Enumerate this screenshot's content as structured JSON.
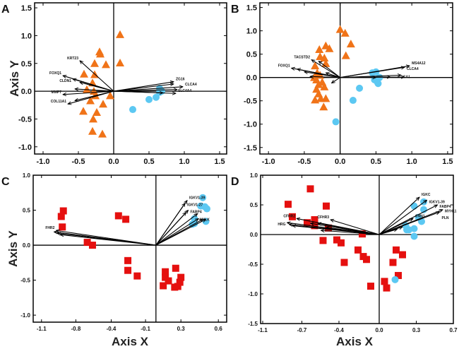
{
  "colors": {
    "triangle": "#f07318",
    "circle": "#5cc8f2",
    "square": "#e5100f",
    "arrow": "#000000"
  },
  "chart_data": [
    {
      "type": "scatter",
      "panel": "A",
      "ylabel": "Axis Y",
      "xlabel": "",
      "xlim": [
        -1.12,
        1.6
      ],
      "ylim": [
        -1.13,
        1.59
      ],
      "xticks": [
        "-1.0",
        "-0.5",
        "0.0",
        "0.5",
        "1.0",
        "1.5"
      ],
      "xtick_values": [
        -1,
        -0.5,
        0,
        0.5,
        1,
        1.5
      ],
      "yticks": [
        "-1.0",
        "-0.5",
        "0.0",
        "0.5",
        "1.0",
        "1.5"
      ],
      "ytick_values": [
        -1,
        -0.5,
        0,
        0.5,
        1,
        1.5
      ],
      "triangles": [
        [
          0.09,
          1.02
        ],
        [
          0.09,
          0.51
        ],
        [
          -0.2,
          0.71
        ],
        [
          -0.19,
          0.67
        ],
        [
          -0.27,
          0.5
        ],
        [
          -0.11,
          0.48
        ],
        [
          -0.42,
          0.31
        ],
        [
          -0.27,
          0.3
        ],
        [
          -0.3,
          0.15
        ],
        [
          -0.38,
          0.03
        ],
        [
          -0.28,
          0.0
        ],
        [
          -0.26,
          -0.08
        ],
        [
          -0.05,
          -0.08
        ],
        [
          -0.33,
          -0.17
        ],
        [
          -0.15,
          -0.23
        ],
        [
          -0.43,
          -0.36
        ],
        [
          -0.24,
          -0.38
        ],
        [
          -0.29,
          -0.5
        ],
        [
          -0.3,
          -0.72
        ],
        [
          -0.16,
          -0.77
        ]
      ],
      "circles": [
        [
          0.27,
          -0.33
        ],
        [
          0.5,
          -0.15
        ],
        [
          0.6,
          -0.11
        ],
        [
          0.65,
          -0.02
        ],
        [
          0.68,
          0.0
        ],
        [
          0.65,
          0.05
        ]
      ],
      "squares": [],
      "vectors": [
        {
          "x": -0.48,
          "y": 0.55,
          "label": "KRT23"
        },
        {
          "x": -0.72,
          "y": 0.28,
          "label": "FOXQ1"
        },
        {
          "x": -0.58,
          "y": 0.22,
          "label": "CLDN1"
        },
        {
          "x": -0.48,
          "y": 0.16,
          "label": ""
        },
        {
          "x": -0.55,
          "y": 0.04,
          "label": ""
        },
        {
          "x": -0.72,
          "y": -0.06,
          "label": "MMP7"
        },
        {
          "x": -0.65,
          "y": -0.23,
          "label": "COL11A1"
        },
        {
          "x": -0.55,
          "y": -0.17,
          "label": ""
        },
        {
          "x": 0.85,
          "y": 0.17,
          "label": "ZG16"
        },
        {
          "x": 0.85,
          "y": 0.13,
          "label": ""
        },
        {
          "x": 0.98,
          "y": 0.08,
          "label": "CLCA4"
        },
        {
          "x": 0.9,
          "y": 0.03,
          "label": ""
        },
        {
          "x": 0.88,
          "y": -0.04,
          "label": "SLC4A4"
        },
        {
          "x": 0.7,
          "y": -0.03,
          "label": ""
        }
      ]
    },
    {
      "type": "scatter",
      "panel": "B",
      "ylabel": "",
      "xlabel": "",
      "xlim": [
        -1.12,
        1.57
      ],
      "ylim": [
        -1.64,
        1.6
      ],
      "xticks": [
        "-1.0",
        "-0.5",
        "0.0",
        "0.5",
        "1.0",
        "1.5"
      ],
      "xtick_values": [
        -1,
        -0.5,
        0,
        0.5,
        1,
        1.5
      ],
      "yticks": [
        "-1.5",
        "-1.0",
        "-0.5",
        "0.0",
        "0.5",
        "1.0",
        "1.5"
      ],
      "ytick_values": [
        -1.5,
        -1,
        -0.5,
        0,
        0.5,
        1,
        1.5
      ],
      "triangles": [
        [
          0.0,
          1.03
        ],
        [
          0.07,
          0.95
        ],
        [
          0.15,
          0.72
        ],
        [
          0.08,
          0.47
        ],
        [
          -0.2,
          0.68
        ],
        [
          -0.15,
          0.62
        ],
        [
          -0.29,
          0.6
        ],
        [
          -0.28,
          0.45
        ],
        [
          -0.22,
          0.42
        ],
        [
          -0.2,
          0.3
        ],
        [
          -0.35,
          0.25
        ],
        [
          -0.32,
          0.1
        ],
        [
          -0.28,
          0.05
        ],
        [
          -0.36,
          0.0
        ],
        [
          -0.33,
          -0.05
        ],
        [
          -0.25,
          -0.1
        ],
        [
          -0.3,
          -0.15
        ],
        [
          -0.22,
          -0.2
        ],
        [
          -0.33,
          -0.25
        ],
        [
          -0.3,
          -0.35
        ],
        [
          -0.27,
          -0.45
        ],
        [
          -0.35,
          -0.48
        ],
        [
          -0.2,
          -0.45
        ],
        [
          -0.23,
          -0.63
        ]
      ],
      "circles": [
        [
          -0.06,
          -0.95
        ],
        [
          0.18,
          -0.49
        ],
        [
          0.27,
          -0.23
        ],
        [
          0.45,
          0.1
        ],
        [
          0.5,
          0.12
        ],
        [
          0.52,
          -0.1
        ],
        [
          0.55,
          0.0
        ],
        [
          0.48,
          -0.05
        ],
        [
          0.53,
          -0.13
        ]
      ],
      "squares": [],
      "vectors": [
        {
          "x": -0.4,
          "y": 0.38,
          "label": "TACSTD2"
        },
        {
          "x": -0.3,
          "y": 0.35,
          "label": ""
        },
        {
          "x": -0.2,
          "y": 0.1,
          "label": ""
        },
        {
          "x": -0.68,
          "y": 0.2,
          "label": "FOXQ1"
        },
        {
          "x": -0.6,
          "y": 0.18,
          "label": ""
        },
        {
          "x": -0.5,
          "y": 0.12,
          "label": ""
        },
        {
          "x": -0.42,
          "y": 0.02,
          "label": ""
        },
        {
          "x": -0.12,
          "y": -0.12,
          "label": ""
        },
        {
          "x": 0.97,
          "y": 0.25,
          "label": "MS4A12"
        },
        {
          "x": 0.9,
          "y": 0.22,
          "label": "CLCA4"
        },
        {
          "x": 0.85,
          "y": 0.05,
          "label": "CA1"
        },
        {
          "x": 0.9,
          "y": 0.01,
          "label": ""
        },
        {
          "x": 0.7,
          "y": 0.01,
          "label": ""
        },
        {
          "x": 0.5,
          "y": 0.0,
          "label": ""
        }
      ]
    },
    {
      "type": "scatter",
      "panel": "C",
      "ylabel": "Axis Y",
      "xlabel": "Axis X",
      "xlim": [
        -1.18,
        0.68
      ],
      "ylim": [
        -1.1,
        1.0
      ],
      "xticks": [
        "-1.1",
        "-0.8",
        "-0.4",
        "-0.1",
        "0.3",
        "0.6"
      ],
      "xtick_values": [
        -1.1,
        -0.77,
        -0.43,
        -0.1,
        0.24,
        0.6
      ],
      "yticks": [
        "-1.0",
        "-0.5",
        "0.0",
        "0.5",
        "1.0"
      ],
      "ytick_values": [
        -1,
        -0.5,
        0,
        0.5,
        1
      ],
      "triangles": [],
      "circles": [
        [
          0.45,
          0.68
        ],
        [
          0.43,
          0.56
        ],
        [
          0.47,
          0.55
        ],
        [
          0.49,
          0.52
        ],
        [
          0.37,
          0.38
        ],
        [
          0.37,
          0.31
        ],
        [
          0.35,
          0.3
        ],
        [
          0.48,
          0.34
        ]
      ],
      "squares": [
        [
          -0.89,
          0.49
        ],
        [
          -0.91,
          0.41
        ],
        [
          -0.9,
          0.26
        ],
        [
          -0.66,
          0.04
        ],
        [
          -0.61,
          0.0
        ],
        [
          -0.36,
          0.42
        ],
        [
          -0.29,
          0.37
        ],
        [
          -0.27,
          -0.22
        ],
        [
          -0.27,
          -0.36
        ],
        [
          -0.18,
          -0.44
        ],
        [
          0.09,
          -0.38
        ],
        [
          0.09,
          -0.46
        ],
        [
          0.12,
          -0.51
        ],
        [
          0.07,
          -0.58
        ],
        [
          0.19,
          -0.33
        ],
        [
          0.23,
          -0.53
        ],
        [
          0.24,
          -0.46
        ],
        [
          0.18,
          -0.6
        ],
        [
          0.21,
          -0.59
        ]
      ],
      "vectors": [
        {
          "x": -0.96,
          "y": 0.21,
          "label": "FHR2"
        },
        {
          "x": -0.98,
          "y": 0.19,
          "label": ""
        },
        {
          "x": -0.95,
          "y": 0.17,
          "label": ""
        },
        {
          "x": -0.92,
          "y": 0.15,
          "label": ""
        },
        {
          "x": 0.3,
          "y": 0.64,
          "label": "IGKV1-39"
        },
        {
          "x": 0.28,
          "y": 0.6,
          "label": "IGKV1-27"
        },
        {
          "x": 0.31,
          "y": 0.5,
          "label": "FABP4"
        },
        {
          "x": 0.29,
          "y": 0.47,
          "label": ""
        },
        {
          "x": 0.4,
          "y": 0.45,
          "label": "MYLK"
        },
        {
          "x": 0.41,
          "y": 0.38,
          "label": ""
        },
        {
          "x": 0.45,
          "y": 0.37,
          "label": ""
        },
        {
          "x": 0.48,
          "y": 0.37,
          "label": ""
        }
      ]
    },
    {
      "type": "scatter",
      "panel": "D",
      "ylabel": "",
      "xlabel": "Axis X",
      "xlim": [
        -1.12,
        0.7
      ],
      "ylim": [
        -1.5,
        1.0
      ],
      "xticks": [
        "-1.1",
        "-0.7",
        "-0.4",
        "0.0",
        "0.3",
        "0.7"
      ],
      "xtick_values": [
        -1.1,
        -0.73,
        -0.38,
        0,
        0.35,
        0.7
      ],
      "yticks": [
        "-1.5",
        "-1.0",
        "-0.5",
        "0.0",
        "0.5",
        "1.0"
      ],
      "ytick_values": [
        -1.5,
        -1,
        -0.5,
        0,
        0.5,
        1
      ],
      "triangles": [],
      "circles": [
        [
          0.33,
          0.48
        ],
        [
          0.42,
          0.55
        ],
        [
          0.42,
          0.42
        ],
        [
          0.37,
          0.29
        ],
        [
          0.4,
          0.22
        ],
        [
          0.33,
          0.1
        ],
        [
          0.28,
          0.08
        ],
        [
          0.26,
          0.08
        ],
        [
          0.25,
          0.15
        ],
        [
          0.33,
          -0.03
        ],
        [
          0.15,
          -0.76
        ]
      ],
      "squares": [
        [
          -0.65,
          0.77
        ],
        [
          -0.86,
          0.51
        ],
        [
          -0.5,
          0.48
        ],
        [
          -0.82,
          0.3
        ],
        [
          -0.61,
          0.25
        ],
        [
          -0.68,
          0.2
        ],
        [
          -0.61,
          0.15
        ],
        [
          -0.48,
          0.11
        ],
        [
          -0.16,
          0.01
        ],
        [
          -0.53,
          -0.1
        ],
        [
          -0.4,
          -0.09
        ],
        [
          -0.36,
          -0.14
        ],
        [
          -0.33,
          -0.47
        ],
        [
          -0.2,
          -0.26
        ],
        [
          -0.15,
          -0.37
        ],
        [
          -0.12,
          -0.42
        ],
        [
          -0.08,
          -0.87
        ],
        [
          0.05,
          -0.79
        ],
        [
          0.07,
          -0.9
        ],
        [
          0.16,
          -0.26
        ],
        [
          0.22,
          -0.34
        ],
        [
          0.13,
          -0.47
        ],
        [
          0.18,
          -0.69
        ]
      ],
      "vectors": [
        {
          "x": -0.78,
          "y": 0.27,
          "label": "CFHR2"
        },
        {
          "x": -0.46,
          "y": 0.25,
          "label": "CFHR3"
        },
        {
          "x": -0.87,
          "y": 0.2,
          "label": "HRG"
        },
        {
          "x": -0.85,
          "y": 0.17,
          "label": ""
        },
        {
          "x": -0.82,
          "y": 0.15,
          "label": ""
        },
        {
          "x": -0.65,
          "y": 0.19,
          "label": ""
        },
        {
          "x": -0.58,
          "y": 0.19,
          "label": ""
        },
        {
          "x": -0.5,
          "y": 0.12,
          "label": ""
        },
        {
          "x": -0.55,
          "y": 0.07,
          "label": ""
        },
        {
          "x": 0.38,
          "y": 0.63,
          "label": "IGKC"
        },
        {
          "x": 0.45,
          "y": 0.58,
          "label": "IGKV1-39"
        },
        {
          "x": 0.55,
          "y": 0.5,
          "label": "FABP4"
        },
        {
          "x": 0.6,
          "y": 0.42,
          "label": "MYH11"
        },
        {
          "x": 0.57,
          "y": 0.38,
          "label": "PLN"
        },
        {
          "x": 0.32,
          "y": 0.27,
          "label": "CNN1"
        },
        {
          "x": 0.22,
          "y": 0.13,
          "label": ""
        },
        {
          "x": 0.17,
          "y": 0.09,
          "label": ""
        }
      ]
    }
  ]
}
